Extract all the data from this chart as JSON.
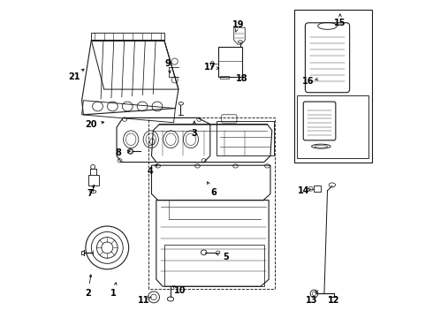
{
  "background_color": "#ffffff",
  "fig_width": 4.9,
  "fig_height": 3.6,
  "dpi": 100,
  "line_color": "#1a1a1a",
  "label_fontsize": 7.0,
  "parts_info": [
    [
      1,
      0.175,
      0.075,
      0.185,
      0.12
    ],
    [
      2,
      0.095,
      0.075,
      0.105,
      0.145
    ],
    [
      3,
      0.43,
      0.58,
      0.43,
      0.63
    ],
    [
      4,
      0.29,
      0.46,
      0.32,
      0.49
    ],
    [
      5,
      0.53,
      0.19,
      0.49,
      0.205
    ],
    [
      6,
      0.49,
      0.395,
      0.47,
      0.43
    ],
    [
      7,
      0.1,
      0.39,
      0.115,
      0.42
    ],
    [
      8,
      0.19,
      0.52,
      0.23,
      0.525
    ],
    [
      9,
      0.345,
      0.8,
      0.355,
      0.77
    ],
    [
      10,
      0.385,
      0.085,
      0.36,
      0.1
    ],
    [
      11,
      0.27,
      0.055,
      0.295,
      0.065
    ],
    [
      12,
      0.87,
      0.055,
      0.855,
      0.075
    ],
    [
      13,
      0.8,
      0.055,
      0.815,
      0.075
    ],
    [
      14,
      0.775,
      0.4,
      0.8,
      0.405
    ],
    [
      15,
      0.89,
      0.93,
      0.89,
      0.96
    ],
    [
      16,
      0.79,
      0.745,
      0.81,
      0.75
    ],
    [
      17,
      0.48,
      0.79,
      0.51,
      0.785
    ],
    [
      18,
      0.58,
      0.755,
      0.56,
      0.77
    ],
    [
      19,
      0.57,
      0.925,
      0.56,
      0.9
    ],
    [
      20,
      0.105,
      0.61,
      0.155,
      0.618
    ],
    [
      21,
      0.05,
      0.76,
      0.09,
      0.79
    ]
  ]
}
